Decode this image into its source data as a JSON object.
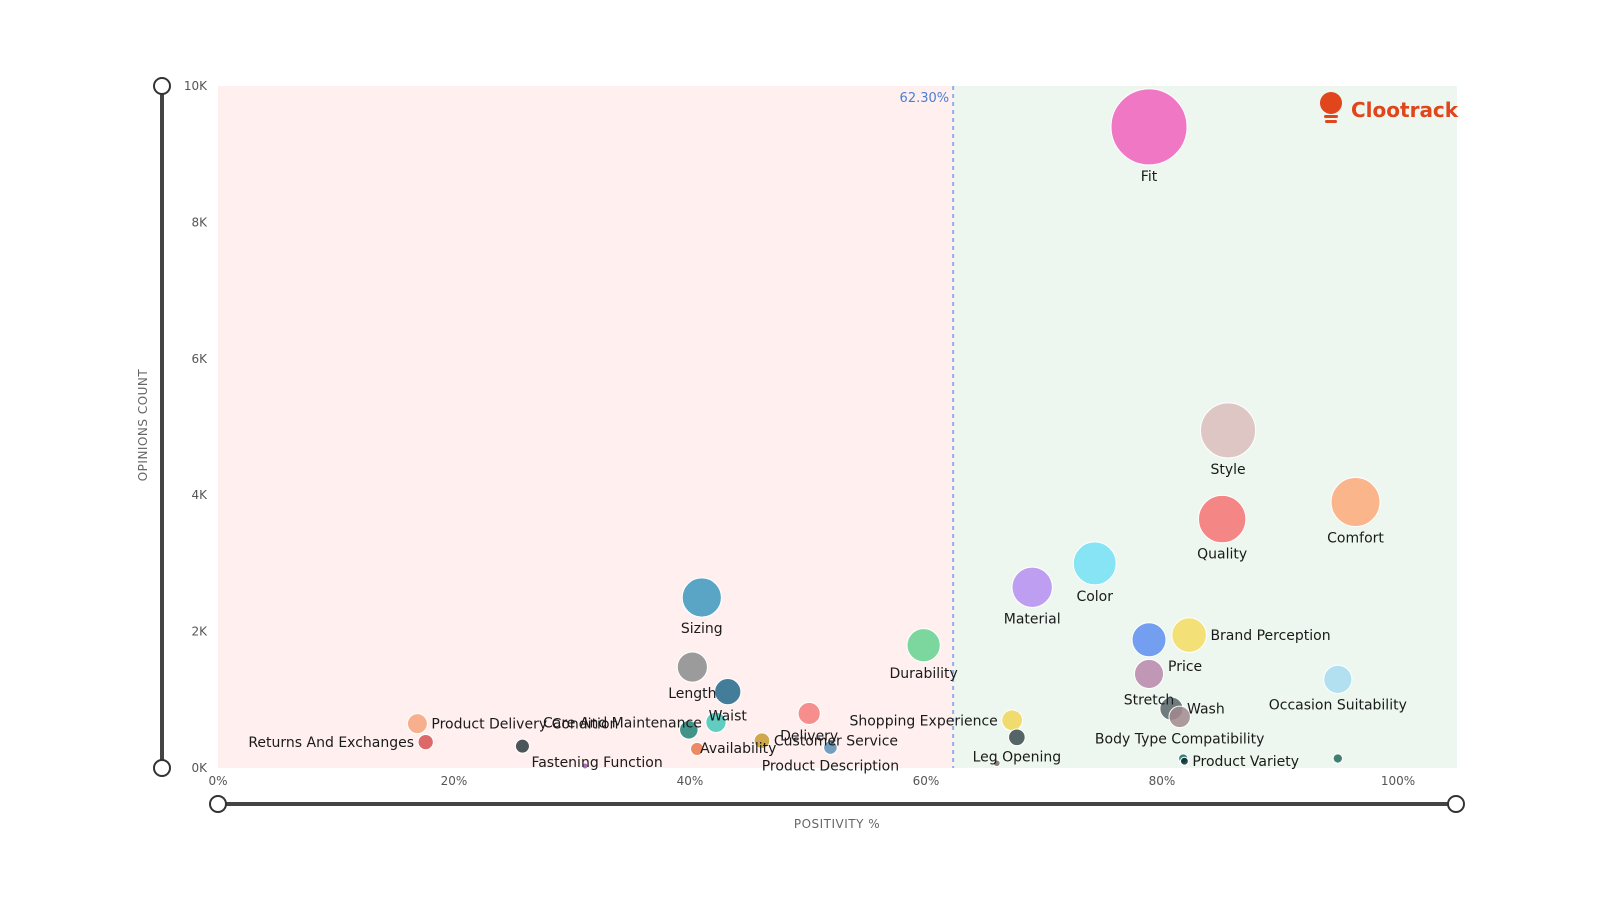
{
  "logo": {
    "text": "Clootrack",
    "color": "#e0451b"
  },
  "threshold": {
    "value": 62.3,
    "label": "62.30%",
    "color": "#8fb0e8"
  },
  "regions": {
    "negative_color": "#fff0ef",
    "positive_color": "#edf7ef"
  },
  "chart_data": {
    "type": "scatter",
    "variant": "bubble",
    "title": "",
    "xlabel": "POSITIVITY %",
    "ylabel": "OPINIONS COUNT",
    "xlim": [
      0,
      105
    ],
    "ylim": [
      0,
      10000
    ],
    "x_ticks": [
      {
        "value": 0,
        "label": "0%"
      },
      {
        "value": 20,
        "label": "20%"
      },
      {
        "value": 40,
        "label": "40%"
      },
      {
        "value": 60,
        "label": "60%"
      },
      {
        "value": 80,
        "label": "80%"
      },
      {
        "value": 100,
        "label": "100%"
      }
    ],
    "y_ticks": [
      {
        "value": 0,
        "label": "0K"
      },
      {
        "value": 2000,
        "label": "2K"
      },
      {
        "value": 4000,
        "label": "4K"
      },
      {
        "value": 6000,
        "label": "6K"
      },
      {
        "value": 8000,
        "label": "8K"
      },
      {
        "value": 10000,
        "label": "10K"
      }
    ],
    "points": [
      {
        "name": "Fit",
        "x": 78.9,
        "y": 9400,
        "color": "#f060bc",
        "label_pos": "below"
      },
      {
        "name": "Style",
        "x": 85.6,
        "y": 4950,
        "color": "#dbbdbd",
        "label_pos": "below"
      },
      {
        "name": "Comfort",
        "x": 96.4,
        "y": 3900,
        "color": "#fca978",
        "label_pos": "below"
      },
      {
        "name": "Quality",
        "x": 85.1,
        "y": 3650,
        "color": "#f57272",
        "label_pos": "below"
      },
      {
        "name": "Color",
        "x": 74.3,
        "y": 3000,
        "color": "#74e0f4",
        "label_pos": "below"
      },
      {
        "name": "Material",
        "x": 69.0,
        "y": 2650,
        "color": "#b48ef0",
        "label_pos": "below"
      },
      {
        "name": "Sizing",
        "x": 41.0,
        "y": 2500,
        "color": "#3d98bd",
        "label_pos": "below"
      },
      {
        "name": "Brand Perception",
        "x": 82.3,
        "y": 1950,
        "color": "#f3dc62",
        "label_pos": "right"
      },
      {
        "name": "Price",
        "x": 78.9,
        "y": 1880,
        "color": "#5e8ef0",
        "label_pos": "below-right"
      },
      {
        "name": "Durability",
        "x": 59.8,
        "y": 1800,
        "color": "#64d28e",
        "label_pos": "below"
      },
      {
        "name": "Length",
        "x": 40.2,
        "y": 1480,
        "color": "#8a8c8c",
        "label_pos": "below"
      },
      {
        "name": "Stretch",
        "x": 78.9,
        "y": 1380,
        "color": "#b787ac",
        "label_pos": "below"
      },
      {
        "name": "Occasion Suitability",
        "x": 94.9,
        "y": 1300,
        "color": "#a8dcf0",
        "label_pos": "below"
      },
      {
        "name": "Waist",
        "x": 43.2,
        "y": 1120,
        "color": "#22698a",
        "label_pos": "below"
      },
      {
        "name": "Wash",
        "x": 80.8,
        "y": 870,
        "color": "#57666a",
        "label_pos": "right"
      },
      {
        "name": "Delivery",
        "x": 50.1,
        "y": 800,
        "color": "#f47d7d",
        "label_pos": "below"
      },
      {
        "name": "Body Type Compatibility",
        "x": 81.5,
        "y": 750,
        "color": "#a18a8e",
        "label_pos": "below"
      },
      {
        "name": "Shopping Experience",
        "x": 67.3,
        "y": 700,
        "color": "#f0d657",
        "label_pos": "left"
      },
      {
        "name": "Product Delivery Condition",
        "x": 16.9,
        "y": 650,
        "color": "#f6a57c",
        "label_pos": "right"
      },
      {
        "name": "Care And Maintenance",
        "x": 42.2,
        "y": 670,
        "color": "#45c7b7",
        "label_pos": "left"
      },
      {
        "name": "Availability",
        "x": 39.9,
        "y": 560,
        "color": "#218275",
        "label_pos": "below-right"
      },
      {
        "name": "Leg Opening",
        "x": 67.7,
        "y": 450,
        "color": "#3a4a4c",
        "label_pos": "below"
      },
      {
        "name": "Customer Service",
        "x": 46.1,
        "y": 400,
        "color": "#c79a30",
        "label_pos": "right"
      },
      {
        "name": "Returns And Exchanges",
        "x": 17.6,
        "y": 380,
        "color": "#d75050",
        "label_pos": "left"
      },
      {
        "name": "Product Description",
        "x": 51.9,
        "y": 300,
        "color": "#5c8fb5",
        "label_pos": "below"
      },
      {
        "name": "Fastening Function",
        "x": 25.8,
        "y": 320,
        "color": "#2d3a3e",
        "label_pos": "below-right"
      },
      {
        "name": "",
        "x": 40.6,
        "y": 280,
        "color": "#e9784d",
        "label_pos": "none"
      },
      {
        "name": "",
        "x": 31.1,
        "y": 30,
        "color": "#9b59a8",
        "label_pos": "none"
      },
      {
        "name": "",
        "x": 66.0,
        "y": 70,
        "color": "#7a6868",
        "label_pos": "none"
      },
      {
        "name": "Product Variety",
        "x": 81.9,
        "y": 100,
        "color": "#0b2d33",
        "label_pos": "right"
      },
      {
        "name": "",
        "x": 81.8,
        "y": 140,
        "color": "#1a6e69",
        "label_pos": "none"
      },
      {
        "name": "",
        "x": 94.9,
        "y": 140,
        "color": "#226a5a",
        "label_pos": "none"
      }
    ]
  }
}
